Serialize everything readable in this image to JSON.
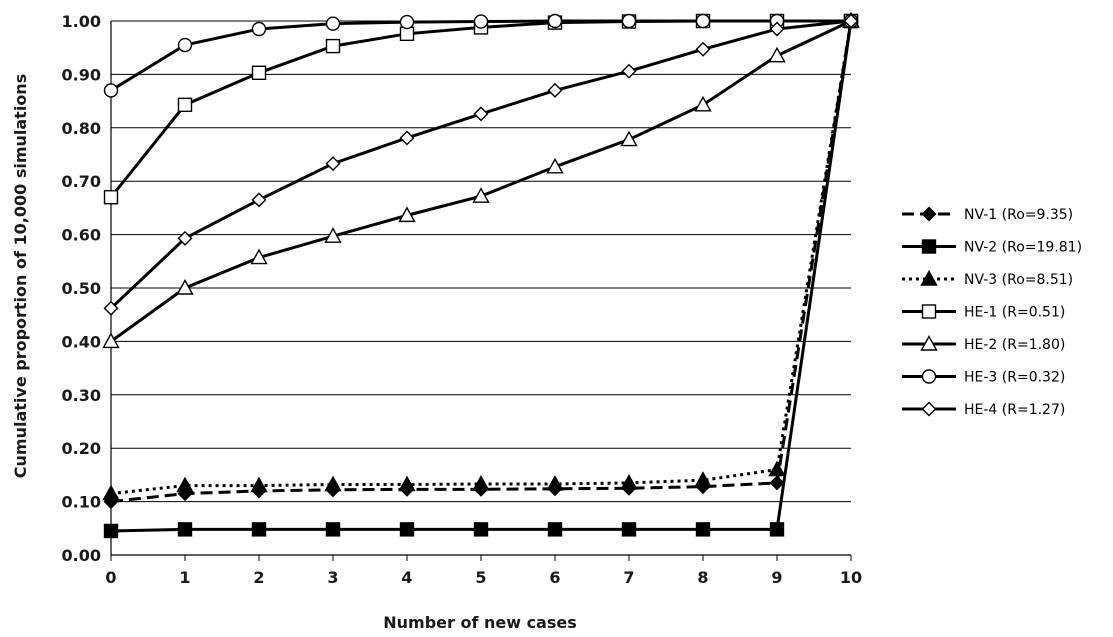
{
  "chart_data": {
    "type": "line",
    "title": "",
    "xlabel": "Number of new cases",
    "ylabel": "Cumulative proportion of 10,000 simulations",
    "x": [
      0,
      1,
      2,
      3,
      4,
      5,
      6,
      7,
      8,
      9,
      10
    ],
    "xlim": [
      0,
      10
    ],
    "ylim": [
      0,
      1
    ],
    "y_ticks": [
      "0.00",
      "0.10",
      "0.20",
      "0.30",
      "0.40",
      "0.50",
      "0.60",
      "0.70",
      "0.80",
      "0.90",
      "1.00"
    ],
    "grid": "horizontal",
    "legend_position": "right",
    "series": [
      {
        "name": "NV-1 (Ro=9.35)",
        "marker": "diamond-filled",
        "line": "dashed",
        "values": [
          0.1,
          0.115,
          0.12,
          0.122,
          0.123,
          0.123,
          0.124,
          0.125,
          0.128,
          0.135,
          1.0
        ]
      },
      {
        "name": "NV-2 (Ro=19.81)",
        "marker": "square-filled",
        "line": "solid",
        "values": [
          0.045,
          0.048,
          0.048,
          0.048,
          0.048,
          0.048,
          0.048,
          0.048,
          0.048,
          0.048,
          1.0
        ]
      },
      {
        "name": "NV-3 (Ro=8.51)",
        "marker": "triangle-filled",
        "line": "dotted",
        "values": [
          0.115,
          0.13,
          0.13,
          0.132,
          0.132,
          0.133,
          0.133,
          0.135,
          0.14,
          0.16,
          1.0
        ]
      },
      {
        "name": "HE-1 (R=0.51)",
        "marker": "square-open",
        "line": "solid",
        "values": [
          0.67,
          0.843,
          0.903,
          0.953,
          0.976,
          0.988,
          0.997,
          0.999,
          1.0,
          1.0,
          1.0
        ]
      },
      {
        "name": "HE-2 (R=1.80)",
        "marker": "triangle-open",
        "line": "solid",
        "values": [
          0.4,
          0.5,
          0.557,
          0.597,
          0.636,
          0.672,
          0.727,
          0.778,
          0.843,
          0.935,
          1.0
        ]
      },
      {
        "name": "HE-3 (R=0.32)",
        "marker": "circle-open",
        "line": "solid",
        "values": [
          0.87,
          0.955,
          0.985,
          0.995,
          0.998,
          0.999,
          1.0,
          1.0,
          1.0,
          1.0,
          1.0
        ]
      },
      {
        "name": "HE-4 (R=1.27)",
        "marker": "diamond-open",
        "line": "solid",
        "values": [
          0.462,
          0.593,
          0.665,
          0.733,
          0.781,
          0.826,
          0.87,
          0.906,
          0.947,
          0.985,
          1.0
        ]
      }
    ]
  }
}
